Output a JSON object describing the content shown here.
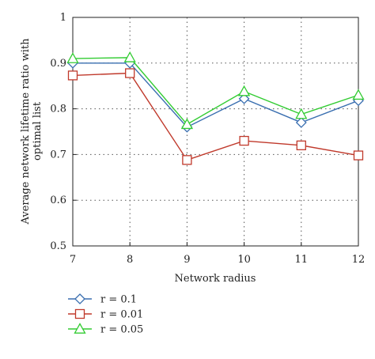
{
  "chart_data": {
    "type": "line",
    "xlabel": "Network radius",
    "ylabel_lines": [
      "Average network lifetime ratio with",
      "optimal list"
    ],
    "x": [
      7,
      8,
      9,
      10,
      11,
      12
    ],
    "xlim": [
      7,
      12
    ],
    "ylim": [
      0.5,
      1.0
    ],
    "xticks": [
      "7",
      "8",
      "9",
      "10",
      "11",
      "12"
    ],
    "yticks": [
      "0.5",
      "0.6",
      "0.7",
      "0.8",
      "0.9",
      "1"
    ],
    "grid": "dotted",
    "legend_position": "bottom-left outside",
    "series": [
      {
        "name": "r = 0.1",
        "color": "#3a6fb0",
        "marker": "diamond",
        "values": [
          0.9,
          0.9,
          0.76,
          0.822,
          0.77,
          0.818
        ]
      },
      {
        "name": "r = 0.01",
        "color": "#c0392b",
        "marker": "square",
        "values": [
          0.873,
          0.878,
          0.688,
          0.73,
          0.72,
          0.698
        ]
      },
      {
        "name": "r = 0.05",
        "color": "#33cc33",
        "marker": "triangle",
        "values": [
          0.91,
          0.912,
          0.766,
          0.838,
          0.788,
          0.83
        ]
      }
    ]
  }
}
